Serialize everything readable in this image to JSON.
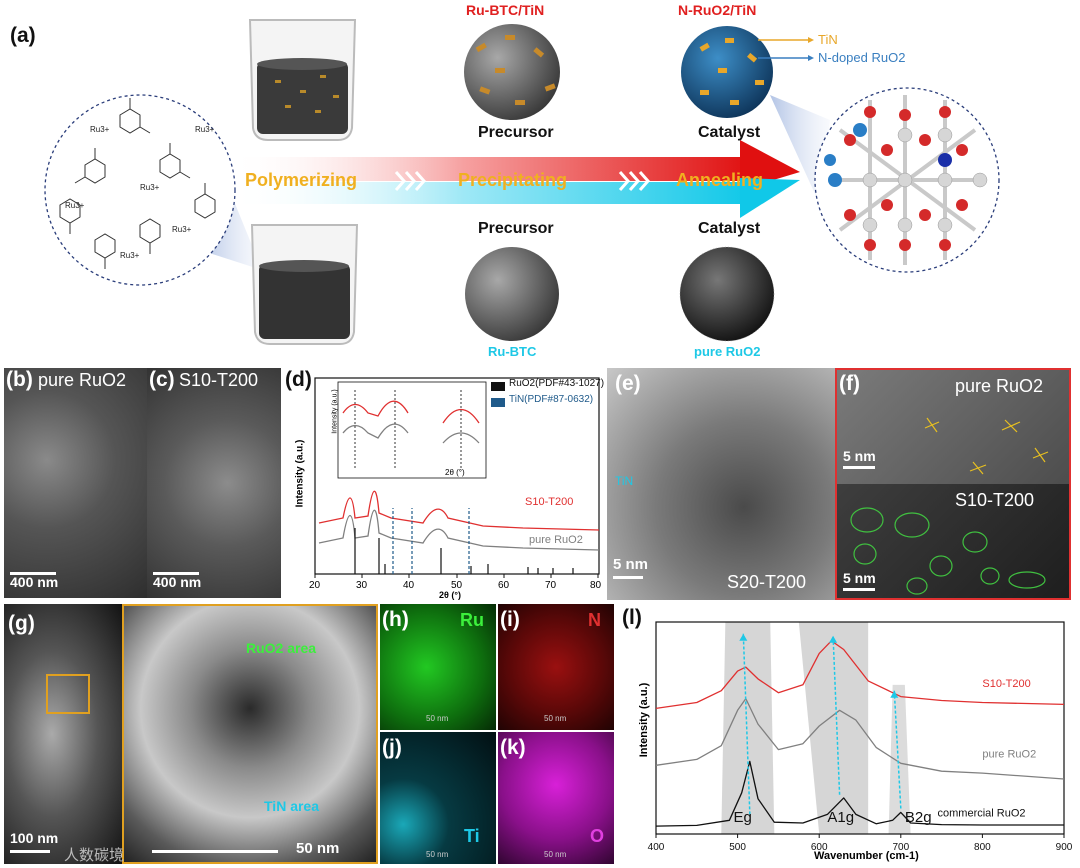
{
  "panel_a": {
    "label": "(a)",
    "top_product": "Ru-BTC/TiN",
    "top_catalyst": "N-RuO2/TiN",
    "callout_tin": "TiN",
    "callout_nruo2": "N-doped RuO2",
    "precursor_label": "Precursor",
    "catalyst_label": "Catalyst",
    "steps": [
      "Polymerizing",
      "Precipitating",
      "Annealing"
    ],
    "bottom_precursor_label": "Precursor",
    "bottom_catalyst_label": "Catalyst",
    "bottom_product": "Ru-BTC",
    "bottom_catalyst": "pure RuO2",
    "ion": "Ru3+",
    "colors": {
      "title_red": "#e02020",
      "step_orange": "#f0b020",
      "cyan": "#1ec8e6",
      "blue": "#3a7fc0"
    }
  },
  "panel_b": {
    "label": "(b)",
    "title": "pure RuO2",
    "scale": "400 nm"
  },
  "panel_c": {
    "label": "(c)",
    "title": "S10-T200",
    "scale": "400 nm"
  },
  "panel_d": {
    "label": "(d)",
    "legend": [
      "RuO2(PDF#43-1027)",
      "TiN(PDF#87-0632)"
    ],
    "ylabel": "Intensity (a.u.)",
    "xlabel": "2θ (°)",
    "xticks": [
      "20",
      "30",
      "40",
      "50",
      "60",
      "70",
      "80"
    ],
    "series": [
      "S10-T200",
      "pure RuO2"
    ],
    "inset_ylabel": "Intensity (a.u.)",
    "inset_xlabel": "2θ (°)",
    "inset_ticks": [
      "28",
      "34",
      "36",
      "42",
      "52",
      "54",
      "56",
      "62"
    ]
  },
  "panel_e": {
    "label": "(e)",
    "tin": "TiN",
    "scale": "5 nm",
    "sample": "S20-T200"
  },
  "panel_f": {
    "label": "(f)",
    "top": "pure RuO2",
    "top_scale": "5 nm",
    "bottom": "S10-T200",
    "bottom_scale": "5 nm"
  },
  "panel_g": {
    "label": "(g)",
    "scale_left": "100 nm",
    "scale_right": "50 nm",
    "ruo2_area": "RuO2 area",
    "tin_area": "TiN area",
    "watermark": "人数碳境"
  },
  "panel_h": {
    "label": "(h)",
    "element": "Ru",
    "scale": "50 nm"
  },
  "panel_i": {
    "label": "(i)",
    "element": "N",
    "scale": "50 nm"
  },
  "panel_j": {
    "label": "(j)",
    "element": "Ti",
    "scale": "50 nm"
  },
  "panel_k": {
    "label": "(k)",
    "element": "O",
    "scale": "50 nm"
  },
  "chart_data": {
    "type": "line",
    "label": "(l)",
    "xlabel": "Wavenumber (cm-1)",
    "ylabel": "Intensity (a.u.)",
    "xlim": [
      400,
      900
    ],
    "xticks": [
      "400",
      "500",
      "600",
      "700",
      "800",
      "900"
    ],
    "series": [
      {
        "name": "S10-T200",
        "color": "#e03030",
        "x": [
          400,
          450,
          480,
          500,
          510,
          525,
          550,
          580,
          600,
          615,
          630,
          660,
          700,
          750,
          800,
          900
        ],
        "y": [
          3.0,
          3.15,
          3.45,
          3.95,
          4.05,
          3.75,
          3.4,
          3.6,
          4.4,
          4.72,
          4.5,
          3.7,
          3.3,
          3.2,
          3.15,
          3.1
        ]
      },
      {
        "name": "pure RuO2",
        "color": "#808080",
        "x": [
          400,
          450,
          480,
          500,
          510,
          525,
          550,
          580,
          600,
          625,
          645,
          670,
          700,
          750,
          800,
          900
        ],
        "y": [
          1.55,
          1.7,
          2.05,
          2.95,
          3.25,
          2.6,
          1.95,
          2.1,
          2.55,
          2.95,
          2.7,
          2.0,
          1.6,
          1.4,
          1.35,
          1.2
        ]
      },
      {
        "name": "commercial RuO2",
        "color": "#111111",
        "x": [
          400,
          450,
          490,
          505,
          515,
          525,
          545,
          580,
          610,
          630,
          645,
          670,
          690,
          700,
          712,
          750,
          800,
          900
        ],
        "y": [
          0.0,
          0.02,
          0.15,
          0.85,
          1.65,
          0.7,
          0.1,
          0.08,
          0.3,
          0.72,
          0.3,
          0.06,
          0.15,
          0.35,
          0.08,
          0.04,
          0.03,
          0.03
        ]
      }
    ],
    "peak_labels": [
      "Eg",
      "A1g",
      "B2g"
    ],
    "line_labels": [
      "S10-T200",
      "pure RuO2",
      "commercial RuO2"
    ]
  }
}
